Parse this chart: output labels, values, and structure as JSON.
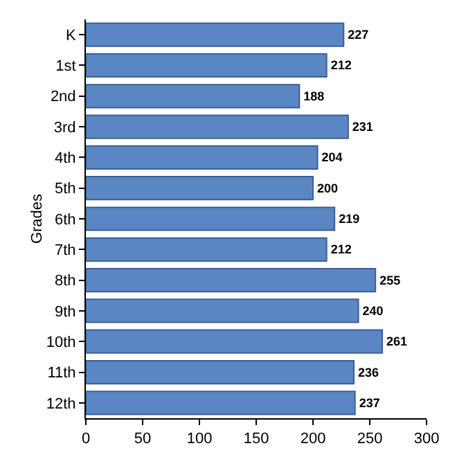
{
  "chart_data": {
    "type": "bar",
    "orientation": "horizontal",
    "ylabel": "Grades",
    "categories": [
      "K",
      "1st",
      "2nd",
      "3rd",
      "4th",
      "5th",
      "6th",
      "7th",
      "8th",
      "9th",
      "10th",
      "11th",
      "12th"
    ],
    "values": [
      227,
      212,
      188,
      231,
      204,
      200,
      219,
      212,
      255,
      240,
      261,
      236,
      237
    ],
    "color": "#5b86c4",
    "xlim": [
      0,
      300
    ],
    "xticks": [
      0,
      50,
      100,
      150,
      200,
      250,
      300
    ],
    "data_labels": true,
    "grid": false
  }
}
